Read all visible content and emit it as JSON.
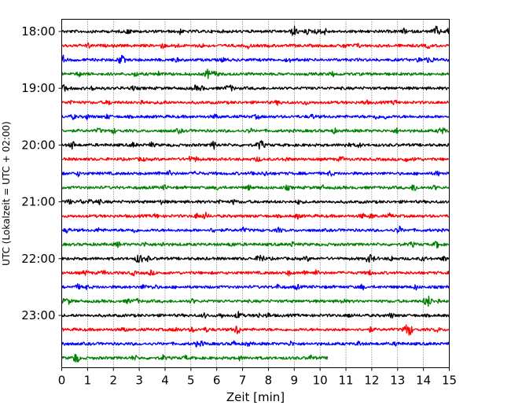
{
  "chart_data": {
    "type": "line",
    "title": "",
    "xlabel": "Zeit  [min]",
    "ylabel": "UTC (Lokalzeit = UTC + 02:00)",
    "xlim": [
      0,
      15
    ],
    "x_ticks": [
      "0",
      "1",
      "2",
      "3",
      "4",
      "5",
      "6",
      "7",
      "8",
      "9",
      "10",
      "11",
      "12",
      "13",
      "14",
      "15"
    ],
    "y_ticks": [
      "18:00",
      "19:00",
      "20:00",
      "21:00",
      "22:00",
      "23:00"
    ],
    "y_tick_trace_index": [
      0,
      4,
      8,
      12,
      16,
      20
    ],
    "trace_interval_min": 15,
    "grid": "vertical dotted lines at each minute",
    "series": [
      {
        "start": "18:00",
        "color": "#000000",
        "end_min": 15
      },
      {
        "start": "18:15",
        "color": "#ff0000",
        "end_min": 15
      },
      {
        "start": "18:30",
        "color": "#0000ff",
        "end_min": 15
      },
      {
        "start": "18:45",
        "color": "#008000",
        "end_min": 15
      },
      {
        "start": "19:00",
        "color": "#000000",
        "end_min": 15
      },
      {
        "start": "19:15",
        "color": "#ff0000",
        "end_min": 15
      },
      {
        "start": "19:30",
        "color": "#0000ff",
        "end_min": 15
      },
      {
        "start": "19:45",
        "color": "#008000",
        "end_min": 15
      },
      {
        "start": "20:00",
        "color": "#000000",
        "end_min": 15
      },
      {
        "start": "20:15",
        "color": "#ff0000",
        "end_min": 15
      },
      {
        "start": "20:30",
        "color": "#0000ff",
        "end_min": 15
      },
      {
        "start": "20:45",
        "color": "#008000",
        "end_min": 15
      },
      {
        "start": "21:00",
        "color": "#000000",
        "end_min": 15
      },
      {
        "start": "21:15",
        "color": "#ff0000",
        "end_min": 15
      },
      {
        "start": "21:30",
        "color": "#0000ff",
        "end_min": 15
      },
      {
        "start": "21:45",
        "color": "#008000",
        "end_min": 15
      },
      {
        "start": "22:00",
        "color": "#000000",
        "end_min": 15
      },
      {
        "start": "22:15",
        "color": "#ff0000",
        "end_min": 15
      },
      {
        "start": "22:30",
        "color": "#0000ff",
        "end_min": 15
      },
      {
        "start": "22:45",
        "color": "#008000",
        "end_min": 15
      },
      {
        "start": "23:00",
        "color": "#000000",
        "end_min": 15
      },
      {
        "start": "23:15",
        "color": "#ff0000",
        "end_min": 15
      },
      {
        "start": "23:30",
        "color": "#0000ff",
        "end_min": 15
      },
      {
        "start": "23:45",
        "color": "#008000",
        "end_min": 10.3
      }
    ],
    "notable_events": [
      {
        "trace": "18:00",
        "minute": 9.0
      },
      {
        "trace": "18:00",
        "minute": 14.5
      },
      {
        "trace": "18:30",
        "minute": 2.3
      },
      {
        "trace": "20:00",
        "minute": 7.7
      },
      {
        "trace": "22:00",
        "minute": 3.0
      },
      {
        "trace": "22:00",
        "minute": 7.7
      },
      {
        "trace": "22:45",
        "minute": 14.2
      },
      {
        "trace": "23:15",
        "minute": 6.8
      },
      {
        "trace": "23:15",
        "minute": 13.4
      }
    ]
  }
}
